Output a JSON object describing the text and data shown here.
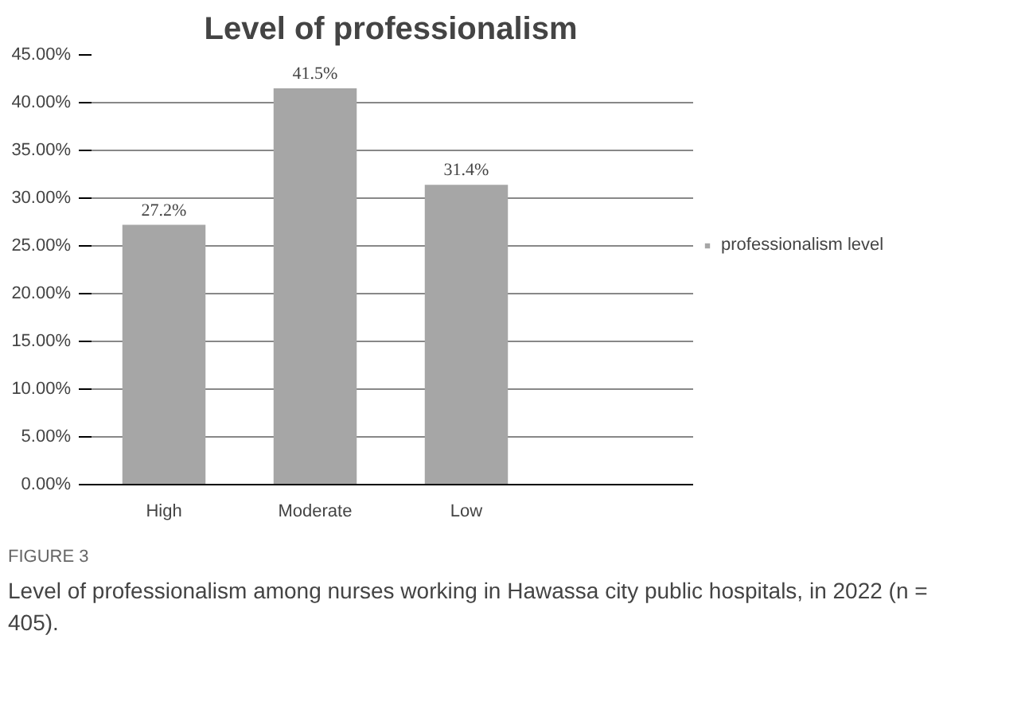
{
  "chart_data": {
    "type": "bar",
    "title": "Level of professionalism",
    "categories": [
      "High",
      "Moderate",
      "Low",
      null
    ],
    "series": [
      {
        "name": "professionalism level",
        "color": "#a6a6a6",
        "values": [
          27.2,
          41.5,
          31.4,
          null
        ],
        "value_labels": [
          "27.2%",
          "41.5%",
          "31.4%",
          null
        ]
      }
    ],
    "ylim": [
      0,
      45
    ],
    "yticks": [
      {
        "value": 0,
        "label": "0.00%"
      },
      {
        "value": 5,
        "label": "5.00%"
      },
      {
        "value": 10,
        "label": "10.00%"
      },
      {
        "value": 15,
        "label": "15.00%"
      },
      {
        "value": 20,
        "label": "20.00%"
      },
      {
        "value": 25,
        "label": "25.00%"
      },
      {
        "value": 30,
        "label": "30.00%"
      },
      {
        "value": 35,
        "label": "35.00%"
      },
      {
        "value": 40,
        "label": "40.00%"
      },
      {
        "value": 45,
        "label": "45.00%"
      }
    ],
    "grid": "y",
    "legend": "right",
    "annotations": [
      "FIGURE 3",
      "Level of professionalism among nurses working in Hawassa city public hospitals, in 2022 (n = 405)."
    ]
  }
}
